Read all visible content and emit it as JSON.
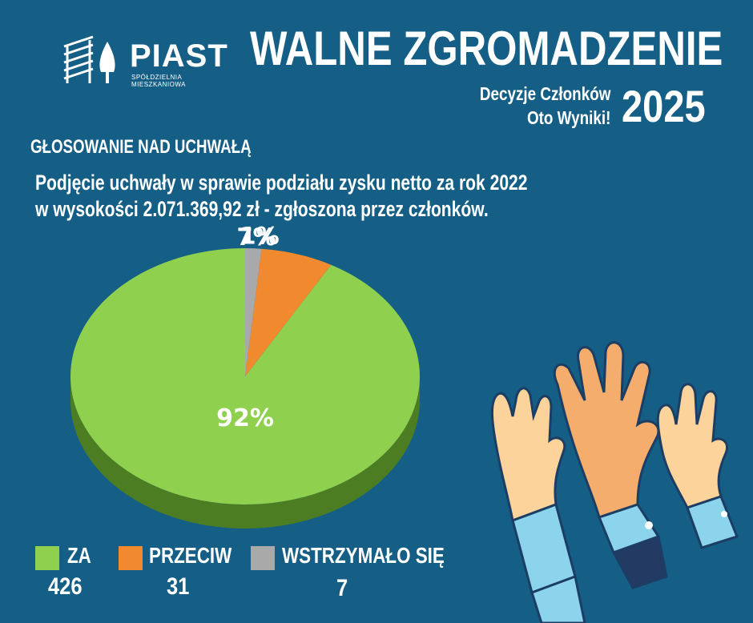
{
  "logo": {
    "name": "PIAST",
    "subtitle": "SPÓŁDZIELNIA MIESZKANIOWA"
  },
  "header": {
    "title": "WALNE ZGROMADZENIE",
    "subtitle_line1": "Decyzje Członków",
    "subtitle_line2": "Oto Wyniki!",
    "year": "2025"
  },
  "section_title": "GŁOSOWANIE NAD UCHWAŁĄ",
  "description_line1": "Podjęcie uchwały w sprawie podziału zysku netto za rok 2022",
  "description_line2": "w wysokości 2.071.369,92 zł - zgłoszona przez członków.",
  "chart_data": {
    "type": "pie",
    "slices": [
      {
        "name": "ZA",
        "value": 426,
        "percent": 92,
        "label": "92%",
        "color": "#8fd14f",
        "side_color": "#4d7d22"
      },
      {
        "name": "PRZECIW",
        "value": 31,
        "percent": 7,
        "label": "7%",
        "color": "#f18a2e",
        "side_color": "#a65a17"
      },
      {
        "name": "WSTRZYMAŁO SIĘ",
        "value": 7,
        "percent": 1,
        "label": "1%",
        "color": "#a9a9a9",
        "side_color": "#6f6f6f"
      }
    ]
  },
  "legend": [
    {
      "label": "ZA",
      "value": "426",
      "color": "#8fd14f"
    },
    {
      "label": "PRZECIW",
      "value": "31",
      "color": "#f18a2e"
    },
    {
      "label": "WSTRZYMAŁO SIĘ",
      "value": "7",
      "color": "#a9a9a9"
    }
  ],
  "colors": {
    "background": "#155f86",
    "text": "#ffffff"
  }
}
